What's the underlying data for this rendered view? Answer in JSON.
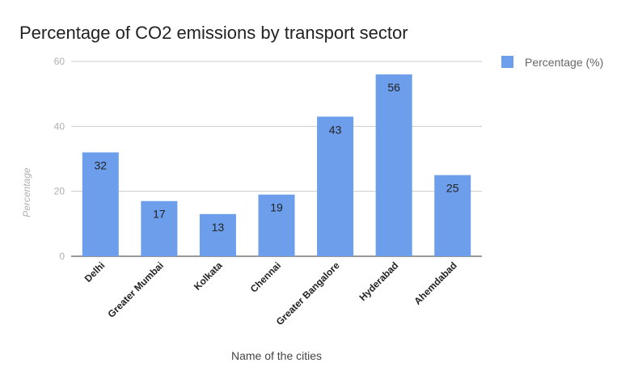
{
  "chart_data": {
    "type": "bar",
    "title": "Percentage of CO2 emissions by transport sector",
    "xlabel": "Name of the cities",
    "ylabel": "Percentage",
    "categories": [
      "Delhi",
      "Greater Mumbai",
      "Kolkata",
      "Chennai",
      "Greater Bangalore",
      "Hyderabad",
      "Ahemdabad"
    ],
    "series": [
      {
        "name": "Percentage (%)",
        "values": [
          32,
          17,
          13,
          19,
          43,
          56,
          25
        ],
        "color": "#6d9eeb"
      }
    ],
    "ylim": [
      0,
      60
    ],
    "yticks": [
      0,
      20,
      40,
      60
    ],
    "grid": true,
    "legend": "right",
    "data_labels": true
  }
}
